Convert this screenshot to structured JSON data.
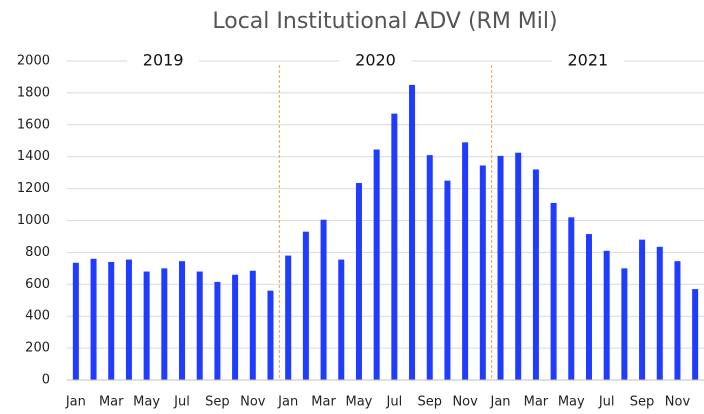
{
  "chart_data": {
    "type": "bar",
    "title": "Local Institutional ADV (RM Mil)",
    "categories": [
      "Jan",
      null,
      "Mar",
      null,
      "May",
      null,
      "Jul",
      null,
      "Sep",
      null,
      "Nov",
      null,
      "Jan",
      null,
      "Mar",
      null,
      "May",
      null,
      "Jul",
      null,
      "Sep",
      null,
      "Nov",
      null,
      "Jan",
      null,
      "Mar",
      null,
      "May",
      null,
      "Jul",
      null,
      "Sep",
      null,
      "Nov",
      null
    ],
    "values": [
      735,
      760,
      740,
      755,
      680,
      700,
      745,
      680,
      615,
      660,
      685,
      560,
      780,
      930,
      1005,
      755,
      1235,
      1445,
      1670,
      1850,
      1410,
      1250,
      1490,
      1345,
      1405,
      1425,
      1320,
      1110,
      1020,
      915,
      810,
      700,
      880,
      835,
      745,
      570
    ],
    "color": "#1f3cff",
    "annotations": [
      "2019",
      "2020",
      "2021"
    ],
    "ylim": [
      0,
      2000
    ],
    "yticks": [
      0,
      200,
      400,
      600,
      800,
      1000,
      1200,
      1400,
      1600,
      1800,
      2000
    ],
    "grid": true
  }
}
